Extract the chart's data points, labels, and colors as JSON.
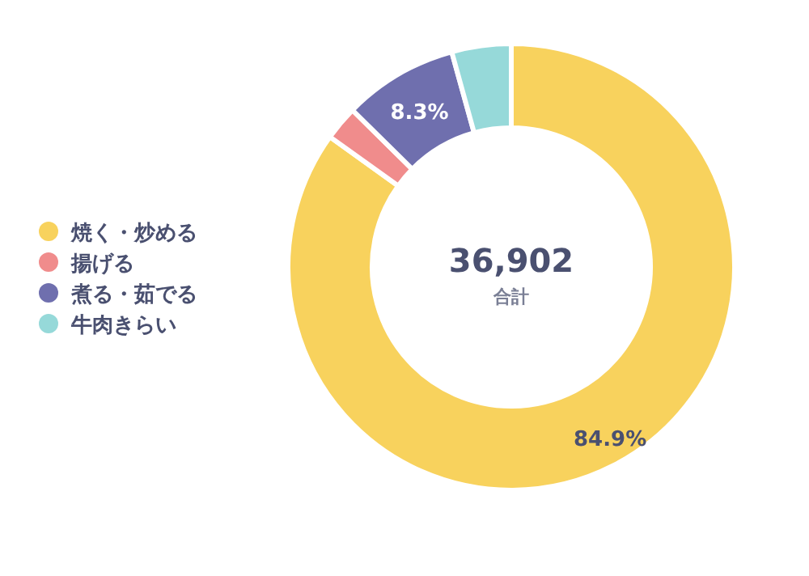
{
  "chart_data": {
    "type": "donut",
    "categories": [
      "焼く・炒める",
      "揚げる",
      "煮る・茹でる",
      "牛肉きらい"
    ],
    "values": [
      84.9,
      2.5,
      8.3,
      4.3
    ],
    "colors": [
      "#f8d25d",
      "#f08c8c",
      "#6f6fae",
      "#96d9d9"
    ],
    "value_labels": [
      "84.9%",
      null,
      "8.3%",
      null
    ],
    "annotations": [
      "36,902",
      "合計"
    ],
    "legend": "left"
  }
}
